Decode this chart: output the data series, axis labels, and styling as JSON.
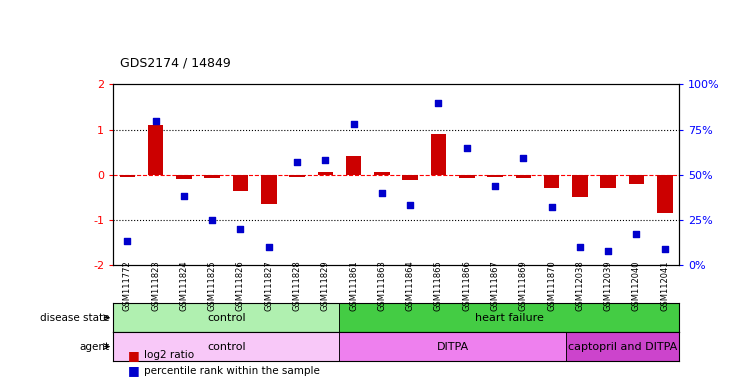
{
  "title": "GDS2174 / 14849",
  "samples": [
    "GSM111772",
    "GSM111823",
    "GSM111824",
    "GSM111825",
    "GSM111826",
    "GSM111827",
    "GSM111828",
    "GSM111829",
    "GSM111861",
    "GSM111863",
    "GSM111864",
    "GSM111865",
    "GSM111866",
    "GSM111867",
    "GSM111869",
    "GSM111870",
    "GSM112038",
    "GSM112039",
    "GSM112040",
    "GSM112041"
  ],
  "log2_ratio": [
    -0.05,
    1.1,
    -0.1,
    -0.08,
    -0.35,
    -0.65,
    -0.05,
    0.05,
    0.42,
    0.05,
    -0.12,
    0.9,
    -0.08,
    -0.05,
    -0.08,
    -0.3,
    -0.5,
    -0.3,
    -0.2,
    -0.85
  ],
  "percentile_rank": [
    13,
    80,
    38,
    25,
    20,
    10,
    57,
    58,
    78,
    40,
    33,
    90,
    65,
    44,
    59,
    32,
    10,
    8,
    17,
    9
  ],
  "disease_state": [
    {
      "label": "control",
      "start": 0,
      "end": 8,
      "color": "#b0f0b0"
    },
    {
      "label": "heart failure",
      "start": 8,
      "end": 20,
      "color": "#44cc44"
    }
  ],
  "agent": [
    {
      "label": "control",
      "start": 0,
      "end": 8,
      "color": "#f8c8f8"
    },
    {
      "label": "DITPA",
      "start": 8,
      "end": 16,
      "color": "#ee80ee"
    },
    {
      "label": "captopril and DITPA",
      "start": 16,
      "end": 20,
      "color": "#cc44cc"
    }
  ],
  "bar_color": "#cc0000",
  "dot_color": "#0000cc",
  "ylim_left": [
    -2,
    2
  ],
  "ylim_right": [
    0,
    100
  ],
  "yticks_left": [
    -2,
    -1,
    0,
    1,
    2
  ],
  "yticks_right": [
    0,
    25,
    50,
    75,
    100
  ],
  "ytick_labels_right": [
    "0%",
    "25%",
    "50%",
    "75%",
    "100%"
  ],
  "bg_color": "#ffffff",
  "legend_items": [
    {
      "label": "log2 ratio",
      "color": "#cc0000"
    },
    {
      "label": "percentile rank within the sample",
      "color": "#0000cc"
    }
  ]
}
